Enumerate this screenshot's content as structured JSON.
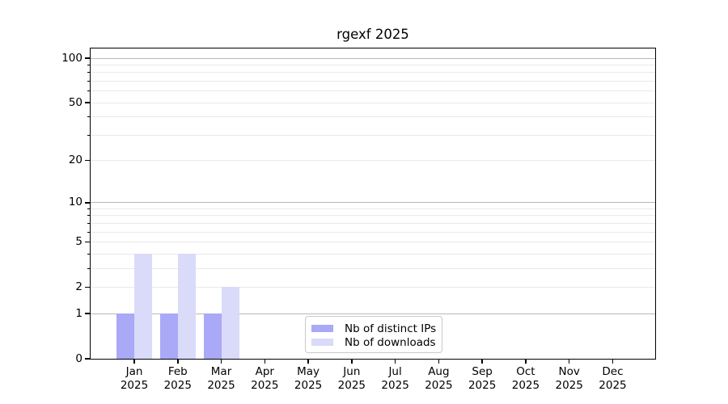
{
  "chart_data": {
    "type": "bar",
    "title": "rgexf 2025",
    "xlabel": "",
    "ylabel": "",
    "yscale": "log1p",
    "ylim": [
      0,
      113
    ],
    "grid": true,
    "categories": [
      "Jan",
      "Feb",
      "Mar",
      "Apr",
      "May",
      "Jun",
      "Jul",
      "Aug",
      "Sep",
      "Oct",
      "Nov",
      "Dec"
    ],
    "category_year": "2025",
    "series": [
      {
        "name": "Nb of distinct IPs",
        "color": "#a9a9f7",
        "values": [
          1,
          1,
          1,
          0,
          0,
          0,
          0,
          0,
          0,
          0,
          0,
          0
        ]
      },
      {
        "name": "Nb of downloads",
        "color": "#dadaf9",
        "values": [
          4,
          4,
          2,
          0,
          0,
          0,
          0,
          0,
          0,
          0,
          0,
          0
        ]
      }
    ],
    "yticks_labeled": [
      0,
      1,
      2,
      5,
      10,
      20,
      50,
      100
    ],
    "yticks_major_grid": [
      1,
      10,
      100
    ],
    "yticks_minor_grid": [
      2,
      3,
      4,
      5,
      6,
      7,
      8,
      9,
      20,
      30,
      40,
      50,
      60,
      70,
      80,
      90
    ],
    "legend": {
      "location": "inside-bottom-center"
    },
    "colors": {
      "major_grid": "#b8b8b8",
      "minor_grid": "#e9e9e9",
      "spine": "#000000",
      "text": "#000000",
      "legend_border": "#c9c9c9",
      "background": "#ffffff"
    }
  }
}
